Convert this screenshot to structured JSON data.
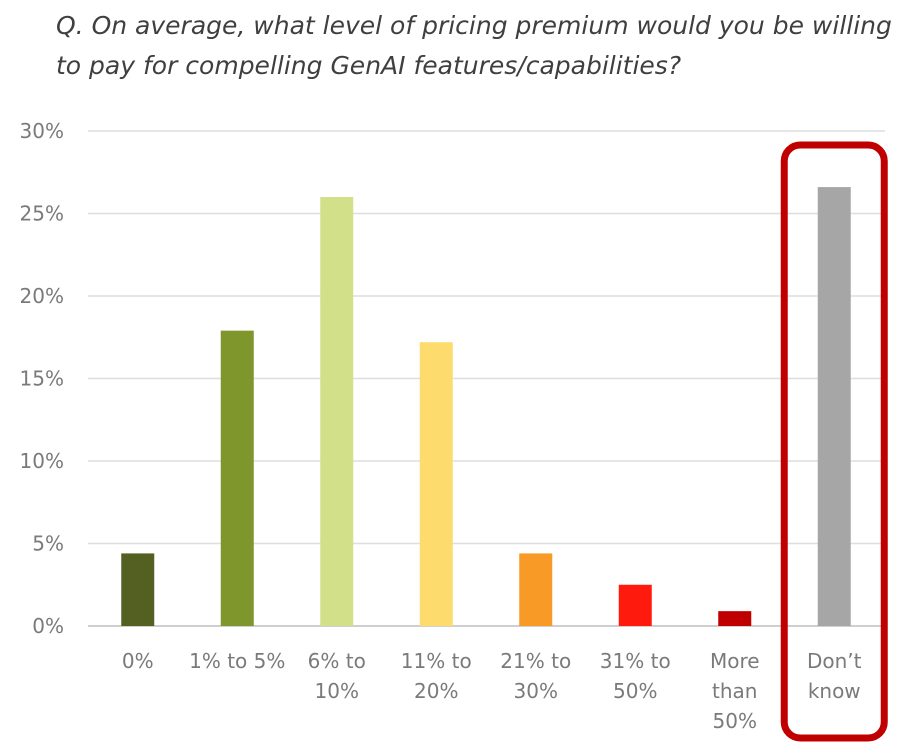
{
  "question": "Q. On average, what level of pricing premium would you be willing to pay for compelling GenAI features/capabilities?",
  "chart_data": {
    "type": "bar",
    "categories": [
      [
        "0%"
      ],
      [
        "1% to 5%"
      ],
      [
        "6% to",
        "10%"
      ],
      [
        "11% to",
        "20%"
      ],
      [
        "21% to",
        "30%"
      ],
      [
        "31% to",
        "50%"
      ],
      [
        "More",
        "than",
        "50%"
      ],
      [
        "Don’t",
        "know"
      ]
    ],
    "values": [
      4.4,
      17.9,
      26.0,
      17.2,
      4.4,
      2.5,
      0.9,
      26.6
    ],
    "colors": [
      "#546021",
      "#7f962c",
      "#d2e08a",
      "#fddb6c",
      "#f89a26",
      "#ff1a0e",
      "#c00000",
      "#a6a6a6"
    ],
    "ylim": [
      0,
      30
    ],
    "yticks": [
      0,
      5,
      10,
      15,
      20,
      25,
      30
    ],
    "ytick_format": "%",
    "grid": true,
    "highlight": {
      "category_index": 7,
      "color": "#c00000"
    }
  }
}
